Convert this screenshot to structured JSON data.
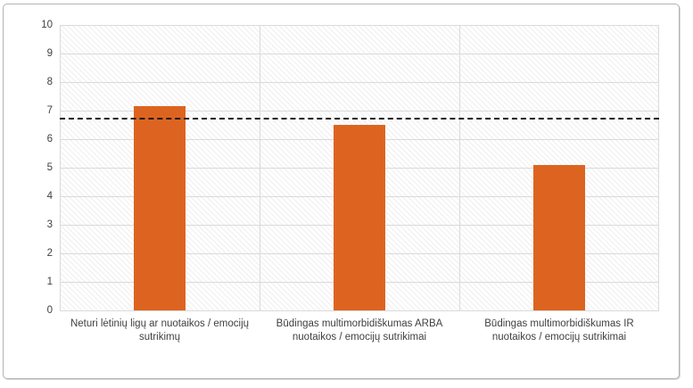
{
  "chart_data": {
    "type": "bar",
    "title": "",
    "xlabel": "",
    "ylabel": "",
    "categories": [
      "Neturi lėtinių ligų ar nuotaikos / emocijų sutrikimų",
      "Būdingas multimorbidiškumas ARBA nuotaikos / emocijų sutrikimai",
      "Būdingas multimorbidiškumas IR nuotaikos / emocijų sutrikimai"
    ],
    "values": [
      7.15,
      6.5,
      5.1
    ],
    "reference_line": 6.75,
    "ylim": [
      0,
      10
    ],
    "y_tick_step": 1,
    "y_ticks": [
      "10",
      "9",
      "8",
      "7",
      "6",
      "5",
      "4",
      "3",
      "2",
      "1",
      "0"
    ],
    "legend": "none",
    "grid": "horizontal integer gridlines, vertical category separators, diagonal-hatch plot background",
    "colors": {
      "bar": "#dd6420",
      "gridline": "#dadada",
      "reference_line": "#1a1a1a",
      "axis_text": "#404040",
      "frame_border": "#b3b3b3"
    }
  }
}
